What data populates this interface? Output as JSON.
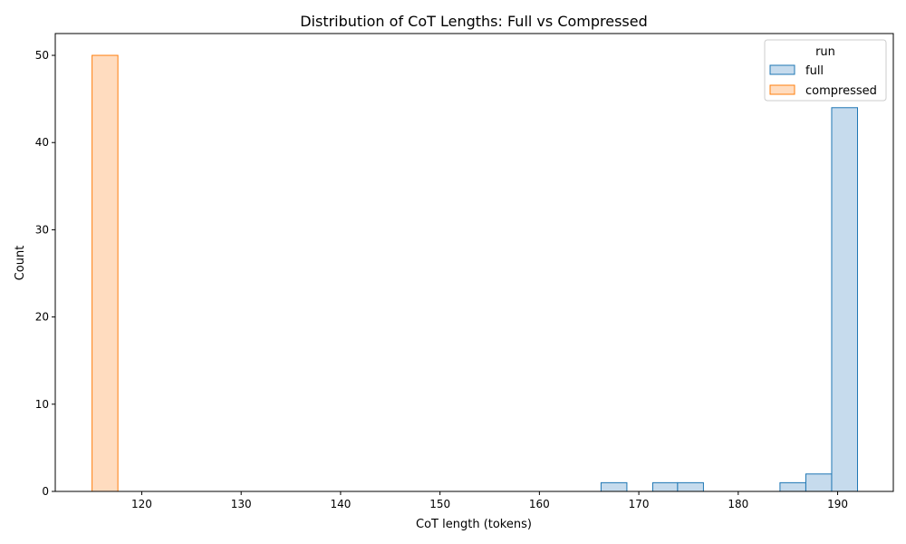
{
  "chart_data": {
    "type": "histogram",
    "title": "Distribution of CoT Lengths: Full vs Compressed",
    "xlabel": "CoT length (tokens)",
    "ylabel": "Count",
    "xlim": [
      111.3,
      195.6
    ],
    "ylim": [
      0,
      52.5
    ],
    "xticks": [
      120,
      130,
      140,
      150,
      160,
      170,
      180,
      190
    ],
    "yticks": [
      0,
      10,
      20,
      30,
      40,
      50
    ],
    "legend": {
      "title": "run",
      "position": "top-right"
    },
    "bin_width": 2.57,
    "series": [
      {
        "name": "full",
        "edge_color": "#1f77b4",
        "fill_color": "#c6dbed",
        "bins": [
          {
            "x0": 166.2,
            "x1": 168.8,
            "count": 1
          },
          {
            "x0": 171.4,
            "x1": 173.9,
            "count": 1
          },
          {
            "x0": 173.9,
            "x1": 176.5,
            "count": 1
          },
          {
            "x0": 184.2,
            "x1": 186.8,
            "count": 1
          },
          {
            "x0": 186.8,
            "x1": 189.4,
            "count": 2
          },
          {
            "x0": 189.4,
            "x1": 192.0,
            "count": 44
          }
        ]
      },
      {
        "name": "compressed",
        "edge_color": "#ff7f0e",
        "fill_color": "#ffdcbf",
        "bins": [
          {
            "x0": 115.0,
            "x1": 117.6,
            "count": 50
          }
        ]
      }
    ]
  }
}
